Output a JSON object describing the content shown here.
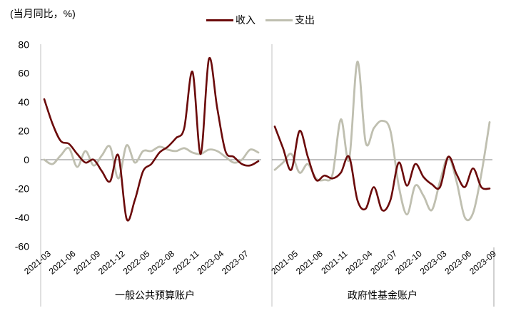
{
  "chart_data": {
    "type": "line",
    "unit_label": "(当月同比，%)",
    "ylim": [
      -60,
      80
    ],
    "yticks": [
      80,
      60,
      40,
      20,
      0,
      -20,
      -40,
      -60
    ],
    "legend": [
      {
        "name": "收入",
        "color": "#6b0a0a"
      },
      {
        "name": "支出",
        "color": "#bfbfb0"
      }
    ],
    "legend_position": "top",
    "grid": false,
    "panels": [
      {
        "name": "一般公共预算账户",
        "tick_labels": [
          "2021-03",
          "2021-06",
          "2021-09",
          "2021-12",
          "2022-05",
          "2022-08",
          "2022-11",
          "2023-04",
          "2023-07"
        ],
        "x": [
          "2021-03",
          "2021-04",
          "2021-05",
          "2021-06",
          "2021-07",
          "2021-08",
          "2021-09",
          "2021-10",
          "2021-11",
          "2021-12",
          "2022-03",
          "2022-04",
          "2022-05",
          "2022-06",
          "2022-07",
          "2022-08",
          "2022-09",
          "2022-10",
          "2022-11",
          "2022-12",
          "2023-03",
          "2023-04",
          "2023-05",
          "2023-06",
          "2023-07",
          "2023-08",
          "2023-09"
        ],
        "series": [
          {
            "name": "收入",
            "values": [
              42,
              25,
              13,
              11,
              4,
              -2,
              0,
              -8,
              -15,
              3,
              -41,
              -28,
              -8,
              -3,
              5,
              9,
              15,
              22,
              61,
              4,
              70,
              36,
              6,
              2,
              -3,
              -4,
              -1
            ]
          },
          {
            "name": "支出",
            "values": [
              0,
              -3,
              3,
              8,
              -5,
              6,
              -4,
              3,
              9,
              -13,
              10,
              -2,
              6,
              6,
              9,
              7,
              6,
              8,
              5,
              4,
              7,
              6,
              2,
              -2,
              0,
              7,
              5
            ]
          }
        ]
      },
      {
        "name": "政府性基金账户",
        "tick_labels": [
          "2021-05",
          "2021-08",
          "2021-11",
          "2022-04",
          "2022-07",
          "2022-10",
          "2023-03",
          "2023-06",
          "2023-09"
        ],
        "x": [
          "2021-03",
          "2021-04",
          "2021-05",
          "2021-06",
          "2021-07",
          "2021-08",
          "2021-09",
          "2021-10",
          "2021-11",
          "2021-12",
          "2022-03",
          "2022-04",
          "2022-05",
          "2022-06",
          "2022-07",
          "2022-08",
          "2022-09",
          "2022-10",
          "2022-11",
          "2022-12",
          "2023-03",
          "2023-04",
          "2023-05",
          "2023-06",
          "2023-07",
          "2023-08",
          "2023-09"
        ],
        "series": [
          {
            "name": "收入",
            "values": [
              23,
              8,
              -7,
              20,
              2,
              -14,
              -11,
              -13,
              -9,
              2,
              -28,
              -34,
              -19,
              -35,
              -28,
              -2,
              -18,
              -3,
              -12,
              -17,
              -19,
              2,
              -10,
              -19,
              -6,
              -19,
              -20
            ]
          },
          {
            "name": "支出",
            "values": [
              -7,
              -2,
              4,
              -9,
              -3,
              -13,
              -14,
              -10,
              28,
              0,
              68,
              12,
              22,
              27,
              20,
              -18,
              -38,
              -18,
              -25,
              -35,
              -15,
              2,
              -15,
              -40,
              -37,
              -10,
              26
            ]
          }
        ]
      }
    ]
  }
}
